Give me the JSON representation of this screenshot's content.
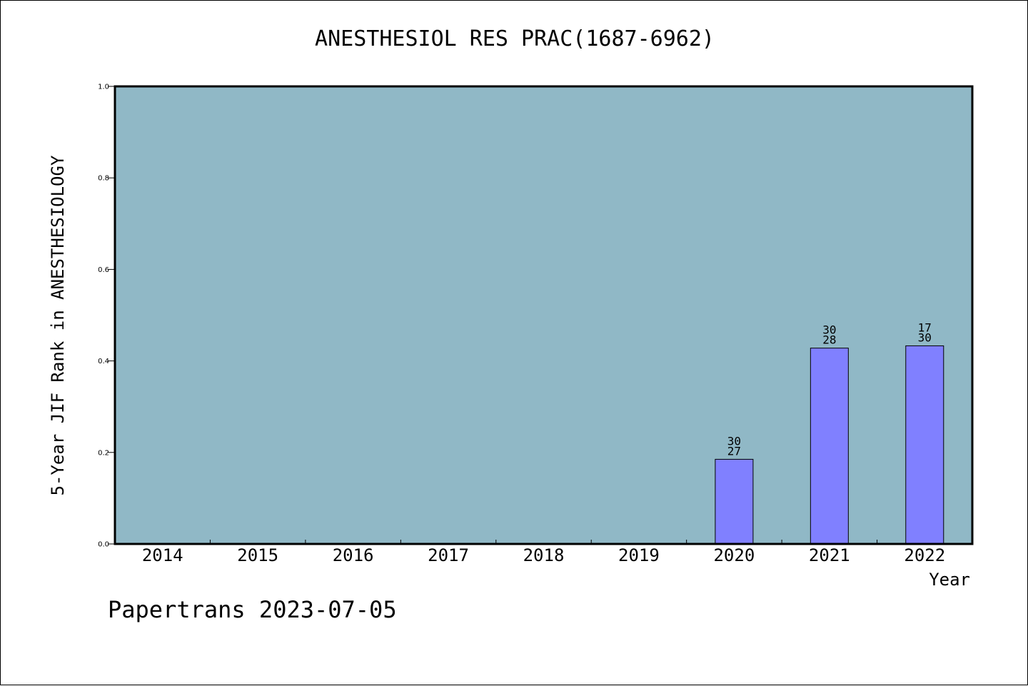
{
  "chart_data": {
    "type": "bar",
    "title": "ANESTHESIOL RES PRAC(1687-6962)",
    "xlabel": "Year",
    "ylabel": "5-Year JIF Rank in ANESTHESIOLOGY",
    "categories": [
      "2014",
      "2015",
      "2016",
      "2017",
      "2018",
      "2019",
      "2020",
      "2021",
      "2022"
    ],
    "values": [
      null,
      null,
      null,
      null,
      null,
      null,
      0.185,
      0.428,
      0.433
    ],
    "bar_labels": [
      null,
      null,
      null,
      null,
      null,
      null,
      [
        "30",
        "27"
      ],
      [
        "30",
        "28"
      ],
      [
        "17",
        "30"
      ]
    ],
    "ylim": [
      0,
      1.0
    ],
    "yticks": [
      "0.0",
      "0.2",
      "0.4",
      "0.6",
      "0.8",
      "1.0"
    ],
    "ytick_values": [
      0.0,
      0.2,
      0.4,
      0.6,
      0.8,
      1.0
    ],
    "grid": false,
    "colors": {
      "plot_background": "#90b8c6",
      "bar_fill": "#8080ff",
      "bar_stroke": "#000000"
    }
  },
  "footer": "Papertrans 2023-07-05"
}
